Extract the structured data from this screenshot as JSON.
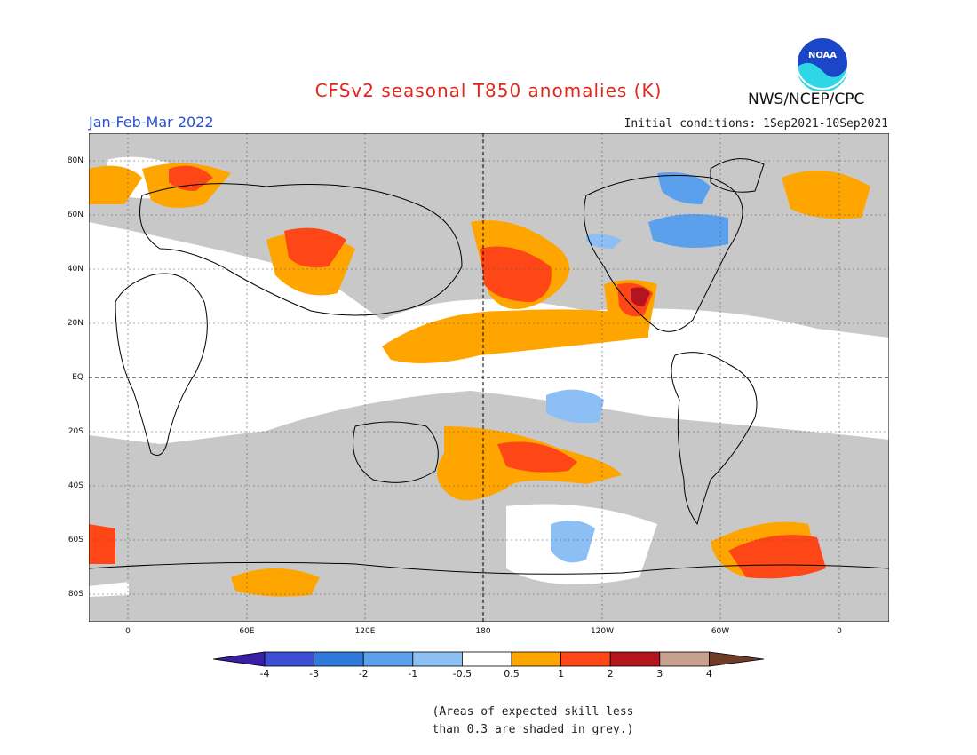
{
  "header": {
    "title": "CFSv2 seasonal T850 anomalies (K)",
    "period": "Jan-Feb-Mar 2022",
    "initial_conditions": "Initial conditions: 1Sep2021-10Sep2021",
    "agency": "NWS/NCEP/CPC",
    "logo_text": "NOAA"
  },
  "map": {
    "lat_labels": [
      "80N",
      "60N",
      "40N",
      "20N",
      "EQ",
      "20S",
      "40S",
      "60S",
      "80S"
    ],
    "lon_labels": [
      "0",
      "60E",
      "120E",
      "180",
      "120W",
      "60W",
      "0"
    ],
    "background_color": "#c8c8c8"
  },
  "legend": {
    "tick_labels": [
      "-4",
      "-3",
      "-2",
      "-1",
      "-0.5",
      "0.5",
      "1",
      "2",
      "3",
      "4"
    ],
    "colors": [
      "#3a1ea8",
      "#3c4fd4",
      "#2f78dc",
      "#5aa0ec",
      "#8cc0f4",
      "#ffffff",
      "#ffa500",
      "#ff4616",
      "#b4141e",
      "#c8a090",
      "#6e3c28"
    ],
    "note_line1": "(Areas of expected skill less",
    "note_line2": "than 0.3 are shaded in grey.)"
  }
}
